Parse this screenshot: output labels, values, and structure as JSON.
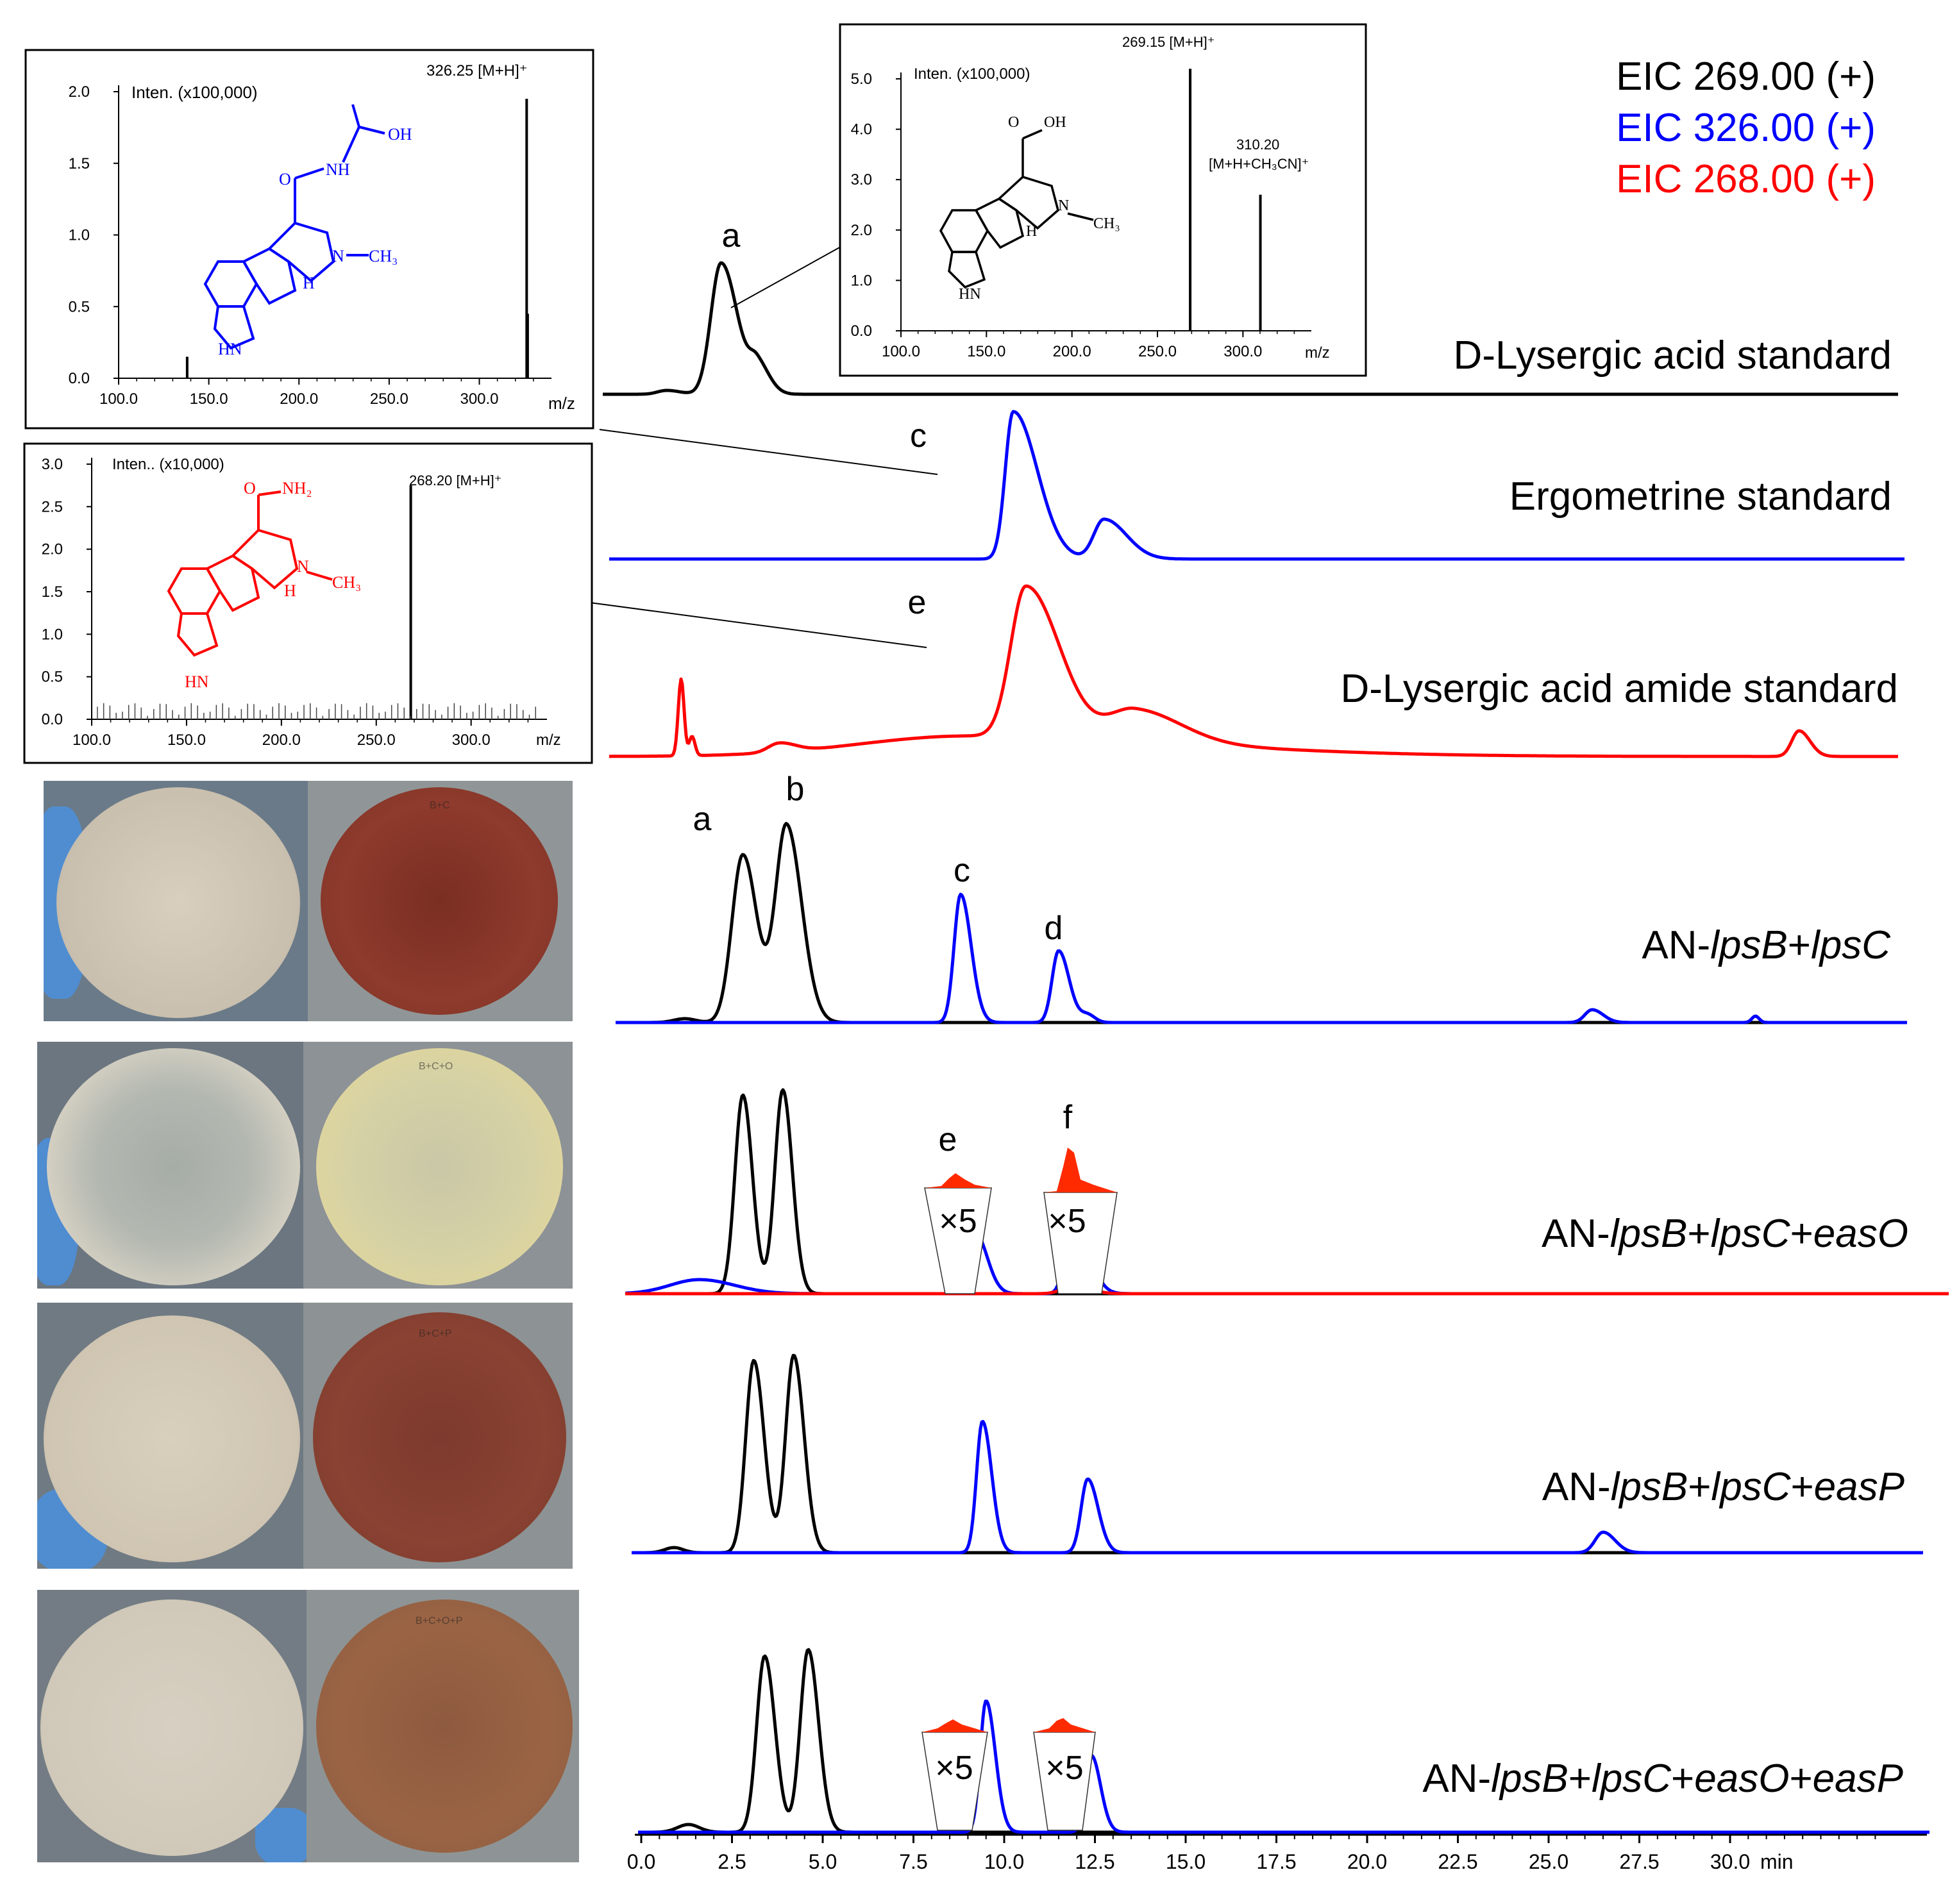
{
  "legend": {
    "items": [
      {
        "label": "EIC 269.00 (+)",
        "color": "#000000"
      },
      {
        "label": "EIC 326.00 (+)",
        "color": "#0000ff"
      },
      {
        "label": "EIC 268.00 (+)",
        "color": "#ff0000"
      }
    ]
  },
  "colors": {
    "eic269": "#000000",
    "eic326": "#0000ff",
    "eic268": "#ff0000"
  },
  "chart_data": [
    {
      "type": "line",
      "x_axis": {
        "ticks": [
          "0.0",
          "2.5",
          "5.0",
          "7.5",
          "10.0",
          "12.5",
          "15.0",
          "17.5",
          "20.0",
          "22.5",
          "25.0",
          "27.5",
          "30.0"
        ],
        "unit": "min",
        "xlim": [
          0,
          35
        ]
      },
      "traces": [
        {
          "name": "D-Lysergic acid standard",
          "color": "#000000",
          "peaks": [
            {
              "label": "a"
            }
          ]
        },
        {
          "name": "Ergometrine standard",
          "color": "#0000ff",
          "peaks": [
            {
              "label": "c"
            }
          ]
        },
        {
          "name": "D-Lysergic acid amide standard",
          "color": "#ff0000",
          "peaks": [
            {
              "label": "e"
            }
          ]
        },
        {
          "name_parts": [
            "AN-",
            "lpsB",
            "+",
            "lpsC"
          ],
          "peaks": [
            {
              "label": "a"
            },
            {
              "label": "b"
            },
            {
              "label": "c"
            },
            {
              "label": "d"
            }
          ]
        },
        {
          "name_parts": [
            "AN-",
            "lpsB",
            "+",
            "lpsC",
            "+",
            "easO"
          ],
          "peaks": [
            {
              "label": "e"
            },
            {
              "label": "f"
            }
          ],
          "magnification": "×5"
        },
        {
          "name_parts": [
            "AN-",
            "lpsB",
            "+",
            "lpsC",
            "+",
            "easP"
          ],
          "peaks": []
        },
        {
          "name_parts": [
            "AN-",
            "lpsB",
            "+",
            "lpsC",
            "+",
            "easO",
            "+",
            "easP"
          ],
          "peaks": [],
          "magnification": "×5"
        }
      ]
    },
    {
      "type": "bar",
      "title": "Inten.   (x100,000)",
      "xlabel": "m/z",
      "ylim": [
        0,
        2.0
      ],
      "y_ticks": [
        "0.0",
        "0.5",
        "1.0",
        "1.5",
        "2.0"
      ],
      "x_ticks": [
        "100.0",
        "150.0",
        "200.0",
        "250.0",
        "300.0"
      ],
      "peak_label": "326.25 [M+H]⁺",
      "peaks": [
        {
          "mz": 326.25,
          "intensity": 1.95
        },
        {
          "mz": 326.8,
          "intensity": 0.45
        },
        {
          "mz": 138,
          "intensity": 0.15
        }
      ]
    },
    {
      "type": "bar",
      "title": "Inten.   (x100,000)",
      "xlabel": "m/z",
      "ylim": [
        0,
        5.0
      ],
      "y_ticks": [
        "0.0",
        "1.0",
        "2.0",
        "3.0",
        "4.0",
        "5.0"
      ],
      "x_ticks": [
        "100.0",
        "150.0",
        "200.0",
        "250.0",
        "300.0"
      ],
      "peak_labels": [
        "269.15 [M+H]⁺",
        "310.20",
        "[M+H+CH₃CN]⁺"
      ],
      "peaks": [
        {
          "mz": 269.15,
          "intensity": 5.2
        },
        {
          "mz": 310.2,
          "intensity": 2.7
        }
      ]
    },
    {
      "type": "bar",
      "title": "Inten..  (x10,000)",
      "xlabel": "m/z",
      "ylim": [
        0,
        3.0
      ],
      "y_ticks": [
        "0.0",
        "0.5",
        "1.0",
        "1.5",
        "2.0",
        "2.5",
        "3.0"
      ],
      "x_ticks": [
        "100.0",
        "150.0",
        "200.0",
        "250.0",
        "300.0"
      ],
      "peak_label": "268.20 [M+H]⁺",
      "peaks": [
        {
          "mz": 268.2,
          "intensity": 2.75
        }
      ]
    }
  ],
  "structures": {
    "ergometrine": {
      "OH": "OH",
      "O": "O",
      "NH": "NH",
      "N": "N",
      "CH3": "CH₃",
      "H": "H",
      "HN": "HN"
    },
    "lysergic_acid": {
      "OH": "OH",
      "O": "O",
      "N": "N",
      "CH3": "CH₃",
      "H": "H",
      "HN": "HN"
    },
    "lysergic_amide": {
      "O": "O",
      "NH2": "NH₂",
      "N": "N",
      "CH3": "CH₃",
      "H": "H",
      "HN": "HN"
    }
  },
  "plates": [
    {
      "label": "B+C"
    },
    {
      "label": "B+C+O"
    },
    {
      "label": "B+C+P"
    },
    {
      "label": "B+C+O+P"
    }
  ]
}
